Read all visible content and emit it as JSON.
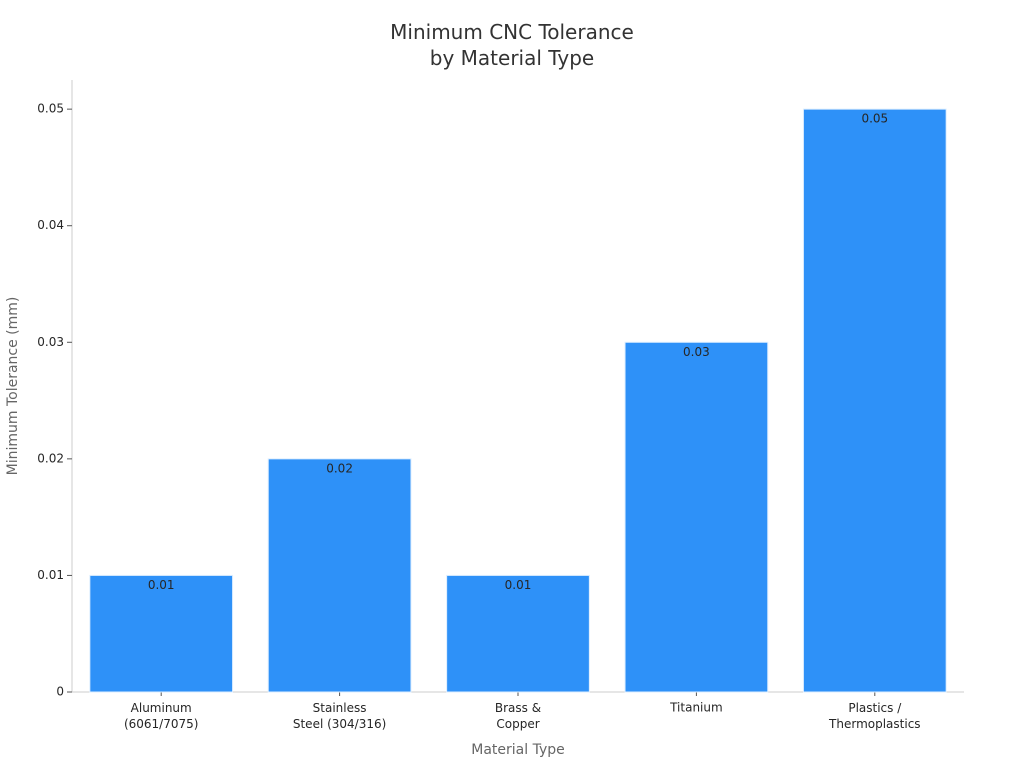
{
  "chart_data": {
    "type": "bar",
    "title": "Minimum CNC Tolerance\nby Material Type",
    "x_label": "Material Type",
    "y_label": "Minimum Tolerance (mm)",
    "categories": [
      "Aluminum\n(6061/7075)",
      "Stainless\nSteel (304/316)",
      "Brass &\nCopper",
      "Titanium",
      "Plastics /\nThermoplastics"
    ],
    "values": [
      0.01,
      0.02,
      0.01,
      0.03,
      0.05
    ],
    "color": "#2e91f8",
    "ylim": [
      0,
      0.0525
    ],
    "yticks": [
      0,
      0.01,
      0.02,
      0.03,
      0.04,
      0.05
    ],
    "grid": false
  }
}
